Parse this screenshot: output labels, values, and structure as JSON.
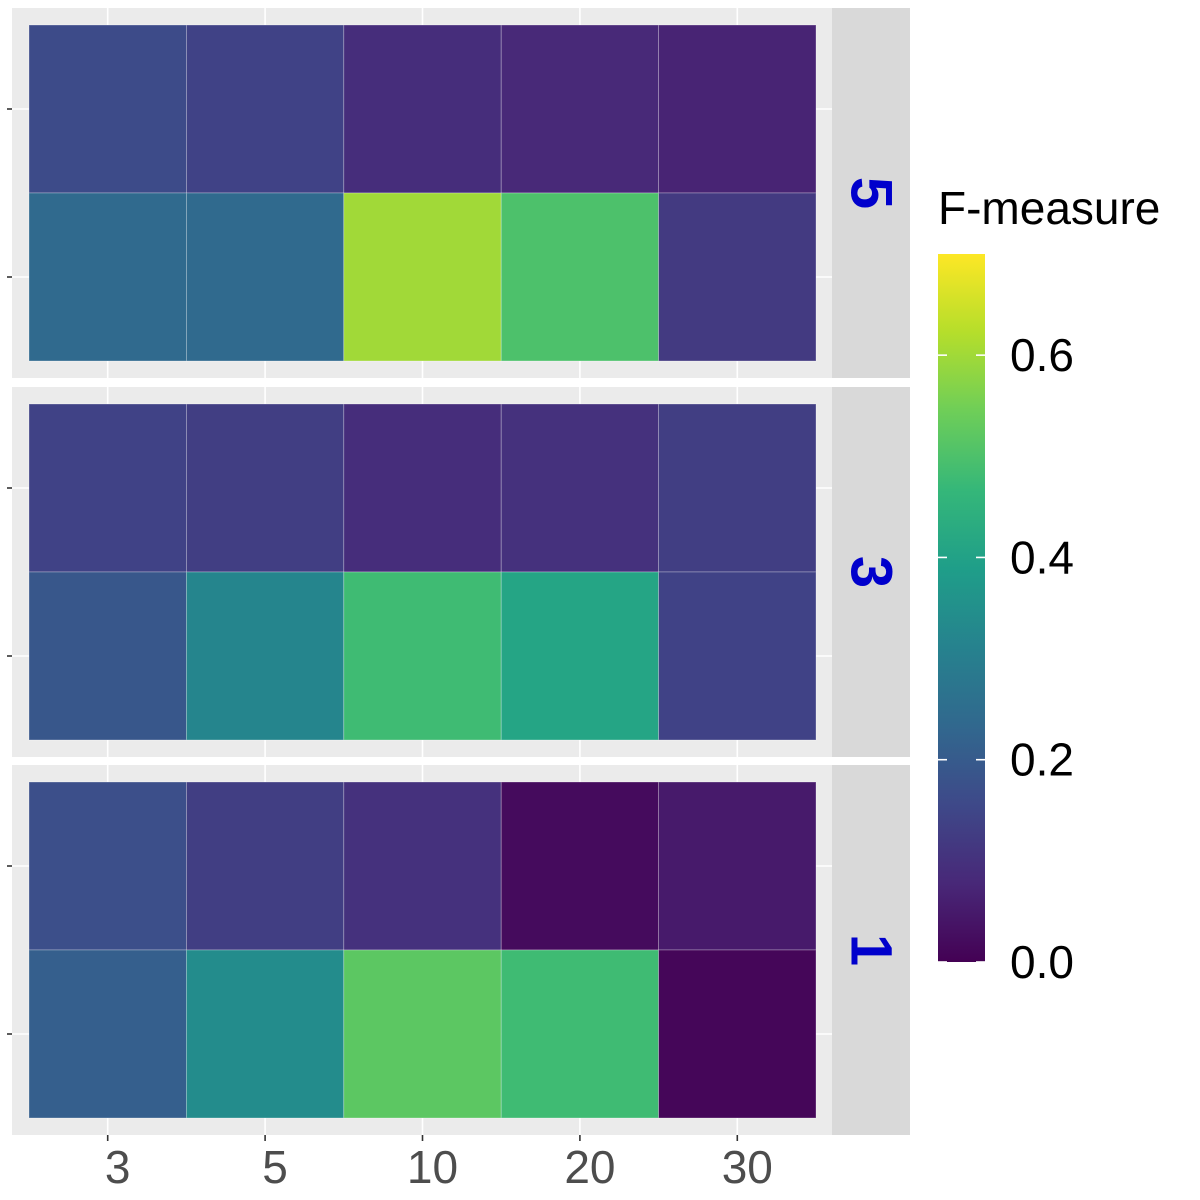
{
  "chart_data": {
    "type": "heatmap",
    "x_categories": [
      "3",
      "5",
      "10",
      "20",
      "30"
    ],
    "x_label": "",
    "y_label": "",
    "facets": [
      {
        "label": "5",
        "rows": [
          [
            0.16,
            0.14,
            0.09,
            0.08,
            0.07
          ],
          [
            0.24,
            0.24,
            0.6,
            0.5,
            0.12
          ]
        ]
      },
      {
        "label": "3",
        "rows": [
          [
            0.14,
            0.13,
            0.09,
            0.1,
            0.13
          ],
          [
            0.19,
            0.32,
            0.48,
            0.41,
            0.14
          ]
        ]
      },
      {
        "label": "1",
        "rows": [
          [
            0.17,
            0.13,
            0.1,
            0.02,
            0.05
          ],
          [
            0.21,
            0.34,
            0.52,
            0.48,
            0.01
          ]
        ]
      }
    ],
    "legend": {
      "title": "F-measure",
      "ticks": [
        "0.0",
        "0.2",
        "0.4",
        "0.6"
      ],
      "tick_values": [
        0.0,
        0.2,
        0.4,
        0.6
      ],
      "range": [
        0.0,
        0.7
      ],
      "palette": "viridis",
      "placement": "right"
    },
    "colors": {
      "panel_background": "#ebebeb",
      "strip_background": "#d9d9d9",
      "strip_text": "#0000cc",
      "grid": "#ffffff",
      "tick_text": "#4d4d4d"
    },
    "grid": true
  }
}
